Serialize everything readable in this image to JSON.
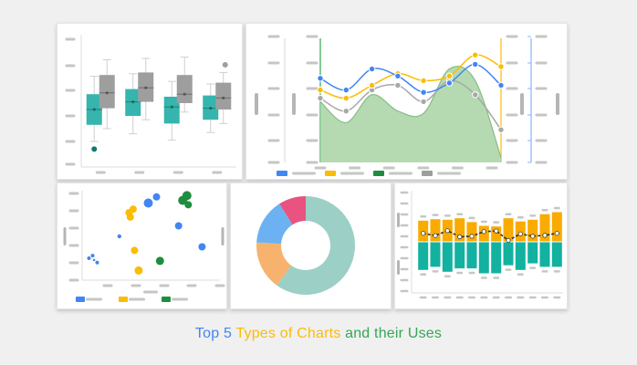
{
  "page": {
    "background": "#f0f0f1",
    "title": {
      "full_text": "Top 5 Types of Charts and their Uses",
      "parts": [
        {
          "text": "Top 5 ",
          "color": "#4285f4"
        },
        {
          "text": "Types of Charts ",
          "color": "#fbbc05"
        },
        {
          "text": "and their Uses",
          "color": "#34a853"
        }
      ]
    },
    "note": "All axis tick labels, legend labels and bar labels are gray placeholder bars (no readable text) in the source image."
  },
  "placeholder": {
    "color": "#c6c6c6",
    "axis_line_color": "#dedede"
  },
  "chart_data": [
    {
      "id": "boxplot",
      "type": "boxplot",
      "panel": "top-left",
      "series": [
        {
          "name": "teal",
          "color": "#35b5ad",
          "median_color": "#1a837c"
        },
        {
          "name": "gray",
          "color": "#9e9e9e",
          "median_color": "#6f6f6f"
        }
      ],
      "groups": [
        {
          "teal": {
            "low": 20,
            "q1": 33,
            "median": 45,
            "q3": 57,
            "high": 71,
            "mean": 45
          },
          "gray": {
            "low": 30,
            "q1": 46,
            "median": 58,
            "q3": 72,
            "high": 84,
            "mean": 58
          }
        },
        {
          "teal": {
            "low": 26,
            "q1": 40,
            "median": 51,
            "q3": 61,
            "high": 73,
            "mean": 51
          },
          "gray": {
            "low": 37,
            "q1": 51,
            "median": 62,
            "q3": 74,
            "high": 85,
            "mean": 62
          }
        },
        {
          "teal": {
            "low": 21,
            "q1": 34,
            "median": 47,
            "q3": 55,
            "high": 67,
            "mean": 47
          },
          "gray": {
            "low": 43,
            "q1": 50,
            "median": 57,
            "q3": 72,
            "high": 86,
            "mean": 57
          }
        },
        {
          "teal": {
            "low": 27,
            "q1": 37,
            "median": 46,
            "q3": 56,
            "high": 65,
            "mean": 46
          },
          "gray": {
            "low": 34,
            "q1": 45,
            "median": 54,
            "q3": 66,
            "high": 74,
            "mean": 54
          }
        }
      ],
      "outliers": [
        {
          "group": 0,
          "series": "teal",
          "value": 14,
          "color": "#0e7a72"
        },
        {
          "group": 3,
          "series": "gray",
          "value": 80,
          "color": "#9e9e9e"
        }
      ],
      "y_ticks": 6,
      "x_ticks": 4,
      "tick_label_style": "placeholder-bar"
    },
    {
      "id": "combo",
      "type": "combo-area-line",
      "panel": "top-right",
      "x_count": 8,
      "value_range": [
        0,
        100
      ],
      "series": [
        {
          "name": "area-green",
          "kind": "area",
          "color": "#a8d3a4",
          "stroke": "#8cbe8b",
          "values": [
            52,
            34,
            58,
            44,
            42,
            80,
            70,
            4
          ]
        },
        {
          "name": "line-gray",
          "kind": "line",
          "color": "#a8a8a8",
          "values": [
            55,
            44,
            62,
            66,
            52,
            70,
            58,
            28
          ]
        },
        {
          "name": "line-yellow",
          "kind": "line",
          "color": "#fbbc04",
          "values": [
            62,
            55,
            66,
            76,
            70,
            74,
            92,
            82
          ]
        },
        {
          "name": "line-blue",
          "kind": "line",
          "color": "#4285f4",
          "values": [
            72,
            62,
            80,
            74,
            60,
            68,
            84,
            66
          ]
        }
      ],
      "axes": [
        {
          "side": "left-outer",
          "line_color": "#dedede",
          "ticks": 6,
          "title_bar": true
        },
        {
          "side": "left-inner",
          "line_color": "#34a853",
          "ticks": 6,
          "title_bar": true
        },
        {
          "side": "right-inner",
          "line_color": "#fbbc04",
          "ticks": 6,
          "title_bar": true
        },
        {
          "side": "right-outer",
          "line_color": "#8ab4f8",
          "ticks": 6,
          "title_bar": true
        }
      ],
      "legend": [
        {
          "name": "blue",
          "color": "#4285f4"
        },
        {
          "name": "yellow",
          "color": "#fbbc04"
        },
        {
          "name": "green",
          "color": "#1e8e3e"
        },
        {
          "name": "gray",
          "color": "#9e9e9e"
        }
      ],
      "x_ticks": 6,
      "tick_label_style": "placeholder-bar"
    },
    {
      "id": "scatter",
      "type": "scatter",
      "panel": "bottom-left",
      "point_format": "[x_percent, y_percent, radius_px]",
      "series": [
        {
          "name": "blue",
          "color": "#4285f4",
          "points": [
            [
              5,
              25,
              2
            ],
            [
              7.6,
              28,
              2
            ],
            [
              8.7,
              23,
              1.3
            ],
            [
              10.9,
              20,
              2
            ],
            [
              27,
              50,
              2.2
            ],
            [
              48,
              88,
              5
            ],
            [
              54,
              95,
              4
            ],
            [
              70,
              62,
              4
            ],
            [
              87,
              38,
              4
            ]
          ]
        },
        {
          "name": "yellow",
          "color": "#fbbc04",
          "points": [
            [
              34,
              77,
              4
            ],
            [
              37,
              81,
              4
            ],
            [
              35,
              72,
              4
            ],
            [
              38,
              34,
              4
            ],
            [
              41,
              11,
              4.5
            ]
          ]
        },
        {
          "name": "green",
          "color": "#1e8e3e",
          "points": [
            [
              73,
              91,
              5
            ],
            [
              76,
              96.5,
              5
            ],
            [
              77,
              86,
              4
            ],
            [
              56.5,
              22,
              4.5
            ]
          ]
        }
      ],
      "legend": [
        {
          "name": "blue",
          "color": "#4285f4"
        },
        {
          "name": "yellow",
          "color": "#fbbc04"
        },
        {
          "name": "green",
          "color": "#1e8e3e"
        }
      ],
      "y_ticks": 6,
      "x_ticks": 5,
      "tick_label_style": "placeholder-bar"
    },
    {
      "id": "donut",
      "type": "donut",
      "panel": "bottom-center",
      "start_angle_deg": 0,
      "direction": "clockwise",
      "slices": [
        {
          "name": "teal",
          "color": "#9ccfc5",
          "percent": 60
        },
        {
          "name": "orange",
          "color": "#f7b26e",
          "percent": 16
        },
        {
          "name": "blue",
          "color": "#6cb2f3",
          "percent": 15
        },
        {
          "name": "pink",
          "color": "#e8537f",
          "percent": 9
        }
      ],
      "outer_radius": 54,
      "inner_radius": 27
    },
    {
      "id": "bars",
      "type": "diverging-bars-line",
      "panel": "bottom-right",
      "bar_count": 12,
      "up": {
        "name": "yellow-bars",
        "color": "#f9ab00",
        "values": [
          71,
          76,
          74,
          79,
          66,
          53,
          51,
          79,
          68,
          74,
          93,
          100
        ]
      },
      "down": {
        "name": "teal-bars",
        "color": "#12b1a0",
        "values": [
          89,
          79,
          95,
          84,
          84,
          100,
          100,
          74,
          89,
          68,
          79,
          79
        ]
      },
      "line": {
        "name": "trend-line",
        "color": "#2e2e2e",
        "dot_fill": "#ffffff",
        "values": [
          26,
          18,
          35,
          14,
          16,
          32,
          34,
          2,
          24,
          16,
          19,
          26
        ]
      },
      "y_ticks": 10,
      "x_ticks": 12,
      "bar_labels": true,
      "tick_label_style": "placeholder-bar"
    }
  ]
}
